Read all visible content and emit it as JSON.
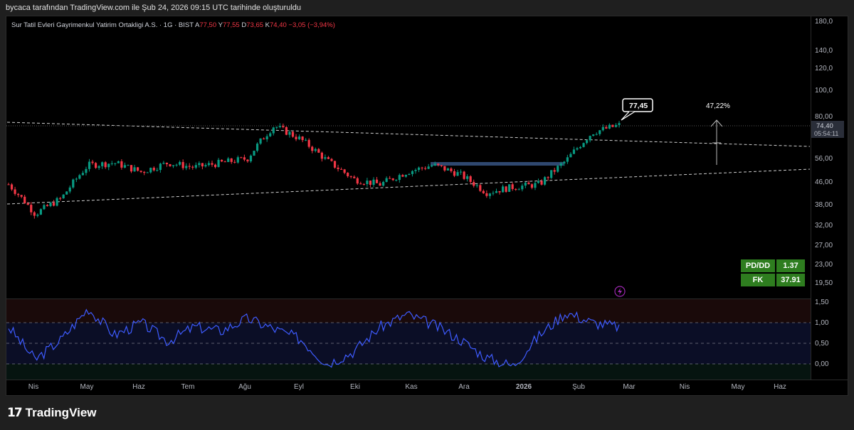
{
  "header": {
    "attribution": "bycaca tarafından TradingView.com ile Şub 24, 2026 09:15 UTC tarihinde oluşturuldu"
  },
  "legend": {
    "symbol": "Sur Tatil Evleri Gayrimenkul Yatirim Ortakligi A.S. · 1G · BIST",
    "o_label": "A",
    "o": "77,50",
    "h_label": "Y",
    "h": "77,55",
    "l_label": "D",
    "l": "73,65",
    "c_label": "K",
    "c": "74,40",
    "change": "−3,05 (−3,94%)"
  },
  "colors": {
    "up": "#089981",
    "down": "#f23645",
    "rsi": "#3e5bff",
    "box": "#2f4870",
    "bg": "#000000"
  },
  "annotations": {
    "price_callout": "77,45",
    "pct_label": "47,22%",
    "last_price": "74,40",
    "countdown": "05:54:11"
  },
  "fundamentals": [
    {
      "label": "PD/DD",
      "value": "1.37"
    },
    {
      "label": "FK",
      "value": "37.91"
    }
  ],
  "brand": {
    "mark": "17",
    "name": "TradingView"
  },
  "chart_data": {
    "type": "candlestick",
    "scale": "log",
    "price_axis_ticks": [
      "180,0",
      "140,0",
      "120,0",
      "100,0",
      "80,00",
      "56,00",
      "46,00",
      "38,00",
      "32,00",
      "27,00",
      "23,00",
      "19,50"
    ],
    "oscillator_ticks": [
      "1,50",
      "1,00",
      "0,50",
      "0,00"
    ],
    "x_axis_labels": [
      "Nis",
      "May",
      "Haz",
      "Tem",
      "Ağu",
      "Eyl",
      "Eki",
      "Kas",
      "Ara",
      "2026",
      "Şub",
      "Mar",
      "Nis",
      "May",
      "Haz"
    ],
    "close_series": [
      {
        "date": "Mar 2025",
        "close": 45
      },
      {
        "date": "Nis 2025",
        "close": 35
      },
      {
        "date": "Nis 2025",
        "close": 40
      },
      {
        "date": "May 2025",
        "close": 53
      },
      {
        "date": "May 2025",
        "close": 54
      },
      {
        "date": "Haz 2025",
        "close": 50
      },
      {
        "date": "Haz 2025",
        "close": 54
      },
      {
        "date": "Tem 2025",
        "close": 52
      },
      {
        "date": "Tem 2025",
        "close": 54
      },
      {
        "date": "Ağu 2025",
        "close": 56
      },
      {
        "date": "Ağu 2025",
        "close": 74
      },
      {
        "date": "Eyl 2025",
        "close": 66
      },
      {
        "date": "Eyl 2025",
        "close": 55
      },
      {
        "date": "Eki 2025",
        "close": 47
      },
      {
        "date": "Eki 2025",
        "close": 45
      },
      {
        "date": "Kas 2025",
        "close": 50
      },
      {
        "date": "Kas 2025",
        "close": 53
      },
      {
        "date": "Ara 2025",
        "close": 49
      },
      {
        "date": "Ara 2025",
        "close": 42
      },
      {
        "date": "Oca 2026",
        "close": 44
      },
      {
        "date": "Oca 2026",
        "close": 45
      },
      {
        "date": "Şub 2026",
        "close": 55
      },
      {
        "date": "Şub 2026",
        "close": 70
      },
      {
        "date": "Şub 2026",
        "close": 74.4
      }
    ],
    "oscillator_series": [
      {
        "date": "Mar 2025",
        "value": 0.9
      },
      {
        "date": "Nis 2025",
        "value": 0.1
      },
      {
        "date": "Nis 2025",
        "value": 0.6
      },
      {
        "date": "May 2025",
        "value": 1.35
      },
      {
        "date": "May 2025",
        "value": 0.7
      },
      {
        "date": "Haz 2025",
        "value": 1.0
      },
      {
        "date": "Haz 2025",
        "value": 0.55
      },
      {
        "date": "Tem 2025",
        "value": 0.9
      },
      {
        "date": "Tem 2025",
        "value": 0.8
      },
      {
        "date": "Ağu 2025",
        "value": 1.1
      },
      {
        "date": "Ağu 2025",
        "value": 0.85
      },
      {
        "date": "Eyl 2025",
        "value": 0.6
      },
      {
        "date": "Eyl 2025",
        "value": 0.0
      },
      {
        "date": "Eki 2025",
        "value": 0.3
      },
      {
        "date": "Eki 2025",
        "value": 0.9
      },
      {
        "date": "Kas 2025",
        "value": 1.2
      },
      {
        "date": "Kas 2025",
        "value": 0.95
      },
      {
        "date": "Ara 2025",
        "value": 0.6
      },
      {
        "date": "Ara 2025",
        "value": 0.15
      },
      {
        "date": "Oca 2026",
        "value": -0.05
      },
      {
        "date": "Oca 2026",
        "value": 0.7
      },
      {
        "date": "Şub 2026",
        "value": 1.25
      },
      {
        "date": "Şub 2026",
        "value": 1.0
      },
      {
        "date": "Şub 2026",
        "value": 0.9
      }
    ]
  }
}
